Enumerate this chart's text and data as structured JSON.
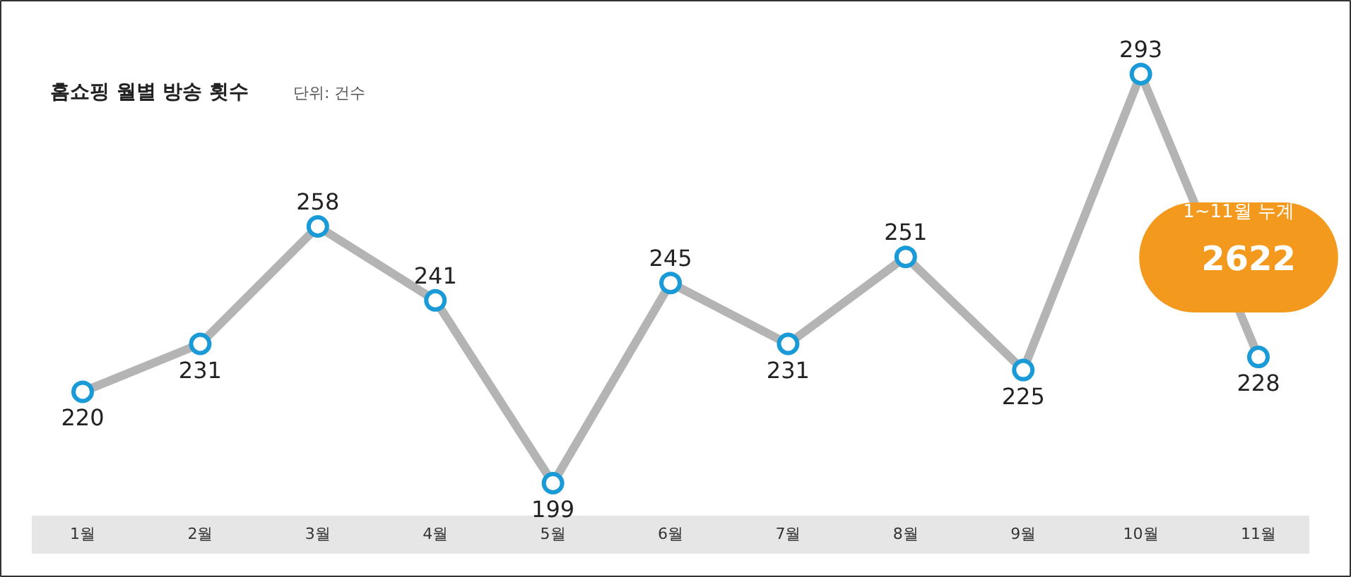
{
  "chart_data": {
    "type": "line",
    "title": "홈쇼핑 월별 방송 횟수",
    "subtitle": "단위: 건수",
    "categories": [
      "1월",
      "2월",
      "3월",
      "4월",
      "5월",
      "6월",
      "7월",
      "8월",
      "9월",
      "10월",
      "11월"
    ],
    "series": [
      {
        "color": "#b4b4b4",
        "values": [
          220,
          231,
          258,
          241,
          199,
          245,
          231,
          251,
          225,
          293,
          228
        ]
      }
    ],
    "marker": "circle",
    "line_style": "solid",
    "data_labels": true,
    "grid": false,
    "annotations": [
      "1~11월 누계",
      "2622"
    ]
  }
}
